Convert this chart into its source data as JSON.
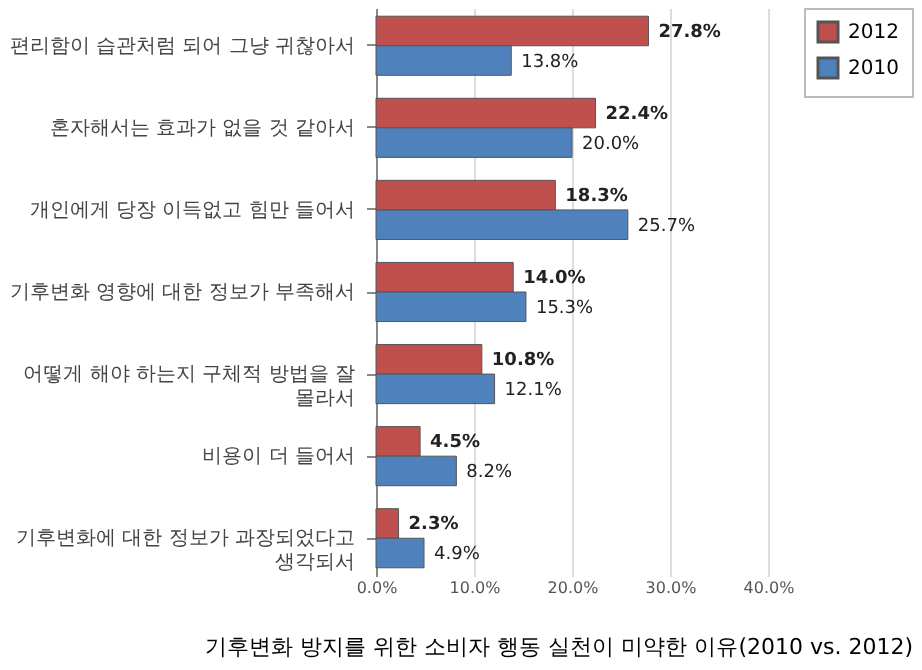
{
  "chart_data": {
    "type": "bar",
    "orientation": "horizontal",
    "title": "기후변화 방지를 위한 소비자 행동 실천이 미약한 이유(2010 vs. 2012)",
    "categories": [
      "편리함이 습관처럼 되어 그냥 귀찮아서",
      "혼자해서는 효과가 없을 것 같아서",
      "개인에게 당장 이득없고 힘만 들어서",
      "기후변화 영향에 대한 정보가 부족해서",
      "어떻게 해야 하는지 구체적 방법을 잘\n몰라서",
      "비용이 더 들어서",
      "기후변화에 대한 정보가 과장되었다고\n생각되서"
    ],
    "series": [
      {
        "name": "2012",
        "color": "#c0504d",
        "values": [
          27.8,
          22.4,
          18.3,
          14.0,
          10.8,
          4.5,
          2.3
        ],
        "value_labels": [
          "27.8%",
          "22.4%",
          "18.3%",
          "14.0%",
          "10.8%",
          "4.5%",
          "2.3%"
        ]
      },
      {
        "name": "2010",
        "color": "#4f81bd",
        "values": [
          13.8,
          20.0,
          25.7,
          15.3,
          12.1,
          8.2,
          4.9
        ],
        "value_labels": [
          "13.8%",
          "20.0%",
          "25.7%",
          "15.3%",
          "12.1%",
          "8.2%",
          "4.9%"
        ]
      }
    ],
    "xlim": [
      0,
      40
    ],
    "xticks": [
      {
        "value": 0,
        "label": "0.0%"
      },
      {
        "value": 10,
        "label": "10.0%"
      },
      {
        "value": 20,
        "label": "20.0%"
      },
      {
        "value": 30,
        "label": "30.0%"
      },
      {
        "value": 40,
        "label": "40.0%"
      }
    ],
    "grid": "x",
    "legend": "right"
  }
}
